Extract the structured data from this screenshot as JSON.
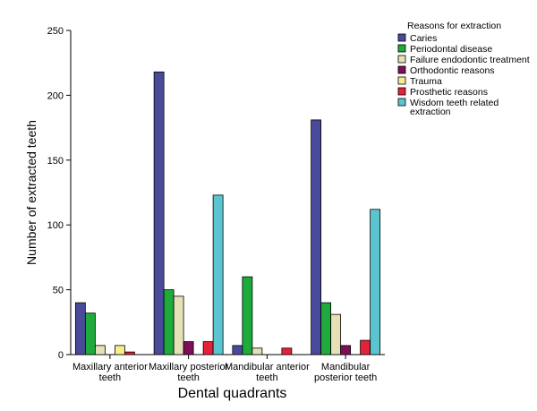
{
  "chart_data": {
    "type": "bar",
    "title": "",
    "xlabel": "Dental quadrants",
    "ylabel": "Number of extracted teeth",
    "ylim": [
      0,
      250
    ],
    "yticks": [
      0,
      50,
      100,
      150,
      200,
      250
    ],
    "grid": false,
    "legend_position": "top-right",
    "legend_title": "Reasons for extraction",
    "categories": [
      [
        "Maxillary anterior",
        "teeth"
      ],
      [
        "Maxillary posterior",
        "teeth"
      ],
      [
        "Mandibular anterior",
        "teeth"
      ],
      [
        "Mandibular",
        "posterior teeth"
      ]
    ],
    "series": [
      {
        "name": [
          "Caries"
        ],
        "color": "#4a4a9a",
        "values": [
          40,
          218,
          7,
          181
        ]
      },
      {
        "name": [
          "Periodontal disease"
        ],
        "color": "#1faa3c",
        "values": [
          32,
          50,
          60,
          40
        ]
      },
      {
        "name": [
          "Failure endodontic treatment"
        ],
        "color": "#e6e0b8",
        "values": [
          7,
          45,
          5,
          31
        ]
      },
      {
        "name": [
          "Orthodontic reasons"
        ],
        "color": "#7b0f5a",
        "values": [
          0,
          10,
          0,
          7
        ]
      },
      {
        "name": [
          "Trauma"
        ],
        "color": "#f5f08a",
        "values": [
          7,
          0,
          0,
          0
        ]
      },
      {
        "name": [
          "Prosthetic reasons"
        ],
        "color": "#e4233a",
        "values": [
          2,
          10,
          5,
          11
        ]
      },
      {
        "name": [
          "Wisdom teeth related",
          "extraction"
        ],
        "color": "#5ac4cf",
        "values": [
          0,
          123,
          0,
          112
        ]
      }
    ]
  }
}
